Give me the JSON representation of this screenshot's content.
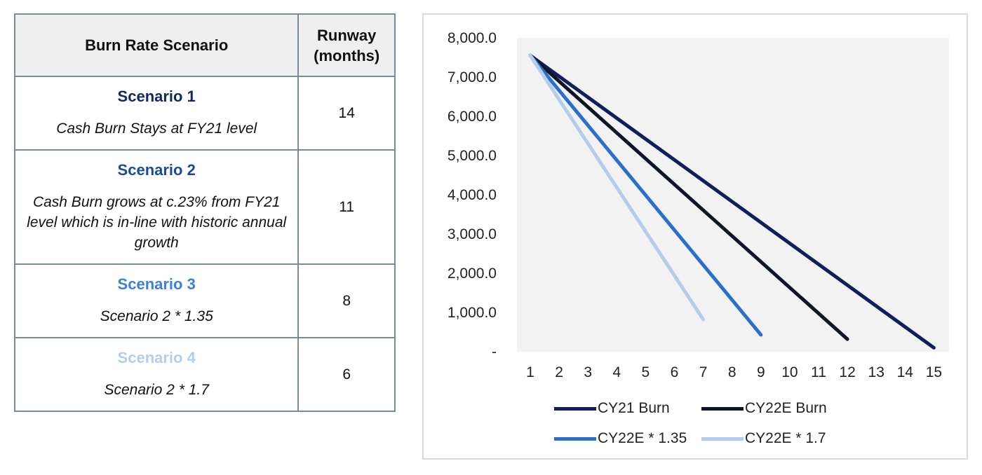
{
  "table": {
    "header": {
      "scenario_col": "Burn Rate Scenario",
      "runway_col_line1": "Runway",
      "runway_col_line2": "(months)"
    },
    "rows": [
      {
        "title": "Scenario 1",
        "title_color": "#0d2a5e",
        "description": "Cash Burn Stays at FY21 level",
        "runway": "14"
      },
      {
        "title": "Scenario 2",
        "title_color": "#1a4b96",
        "description": "Cash Burn grows at c.23% from FY21 level which is in-line with historic annual growth",
        "runway": "11"
      },
      {
        "title": "Scenario 3",
        "title_color": "#3d7fdc",
        "description": "Scenario 2 * 1.35",
        "runway": "8"
      },
      {
        "title": "Scenario 4",
        "title_color": "#b4cdee",
        "description": "Scenario 2 * 1.7",
        "runway": "6"
      }
    ]
  },
  "chart_data": {
    "type": "line",
    "title": "",
    "xlabel": "",
    "ylabel": "",
    "x_ticks": [
      "1",
      "2",
      "3",
      "4",
      "5",
      "6",
      "7",
      "8",
      "9",
      "10",
      "11",
      "12",
      "13",
      "14",
      "15"
    ],
    "y_ticks": [
      "-",
      "1,000.0",
      "2,000.0",
      "3,000.0",
      "4,000.0",
      "5,000.0",
      "6,000.0",
      "7,000.0",
      "8,000.0"
    ],
    "xlim": [
      1,
      15
    ],
    "ylim": [
      0,
      8000
    ],
    "grid": false,
    "plot_background": "#f2f2f2",
    "legend_position": "bottom",
    "series": [
      {
        "name": "CY21 Burn",
        "color": "#0f1f5c",
        "x": [
          1,
          15
        ],
        "y": [
          7550,
          100
        ]
      },
      {
        "name": "CY22E Burn",
        "color": "#0e1526",
        "x": [
          1,
          12
        ],
        "y": [
          7550,
          320
        ]
      },
      {
        "name": "CY22E * 1.35",
        "color": "#2a6fcc",
        "x": [
          1,
          9
        ],
        "y": [
          7550,
          430
        ]
      },
      {
        "name": "CY22E * 1.7",
        "color": "#b4cdee",
        "x": [
          1,
          7
        ],
        "y": [
          7550,
          820
        ]
      }
    ]
  }
}
